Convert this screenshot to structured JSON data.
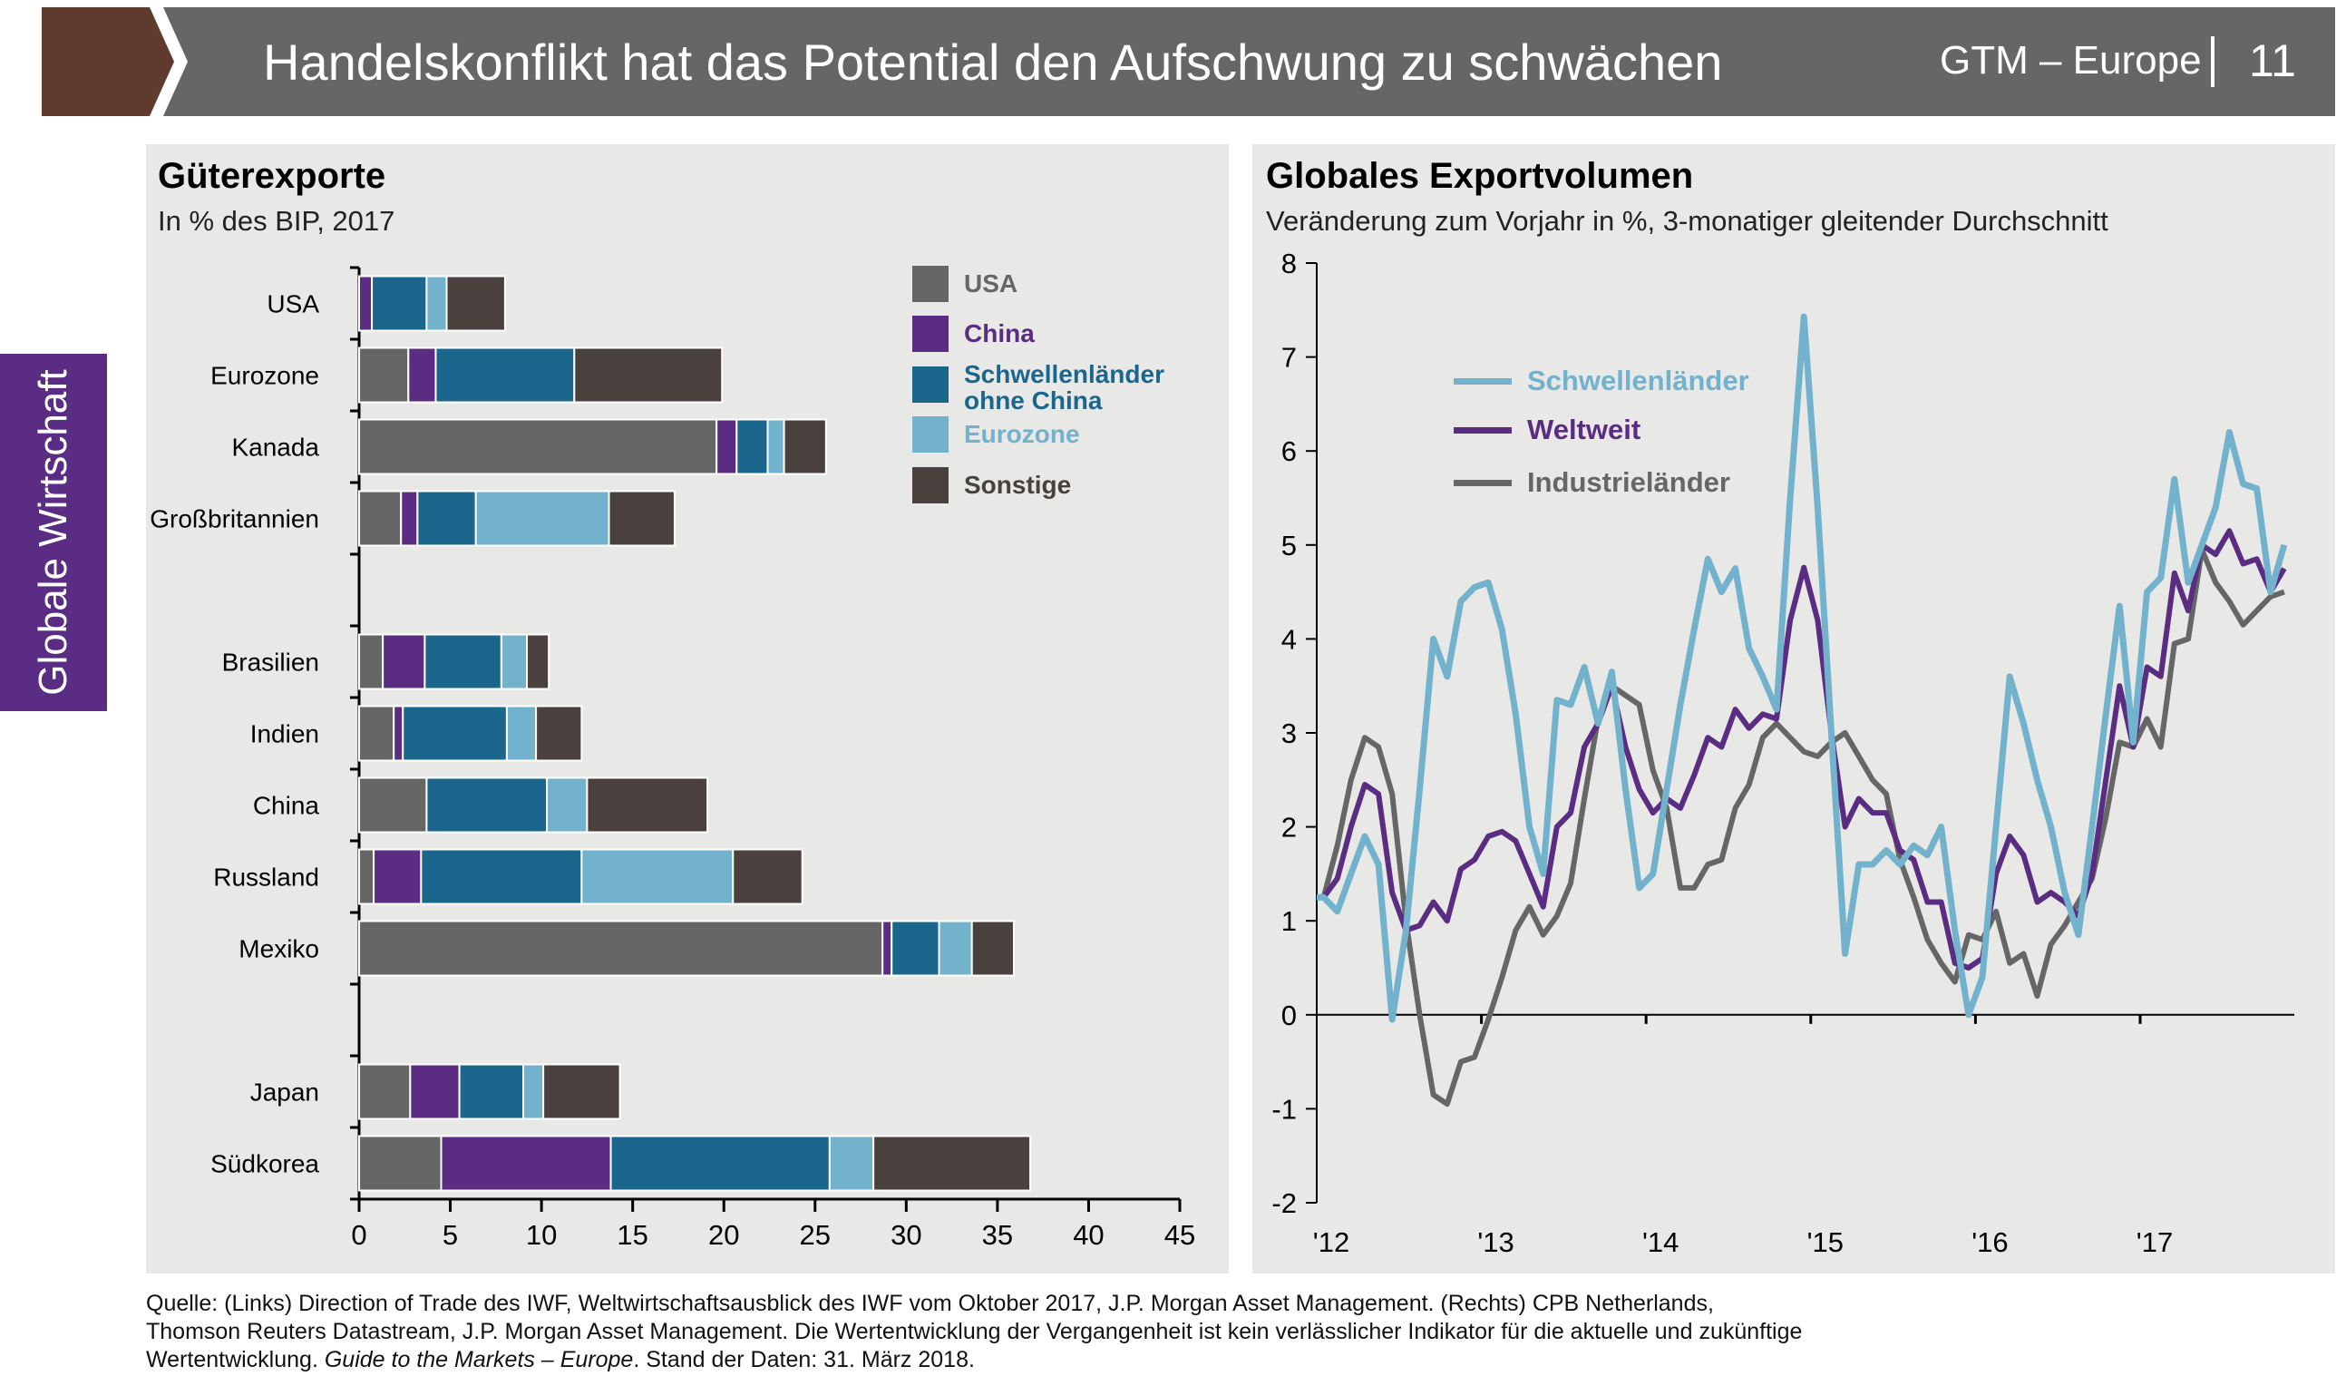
{
  "header": {
    "title": "Handelskonflikt hat das Potential den Aufschwung zu schwächen",
    "brand": "GTM – Europe",
    "page": "11"
  },
  "sidebar": {
    "label": "Globale Wirtschaft"
  },
  "colors": {
    "header_gray": "#666666",
    "header_brown": "#5e3b2c",
    "sidebar_purple": "#5b2c83",
    "panel_bg": "#e8e8e6",
    "usa": "#666666",
    "china": "#5a2d82",
    "schwellen_ohne_china": "#1a668c",
    "eurozone": "#73b2cd",
    "sonstige": "#4a403e"
  },
  "chart_data": [
    {
      "type": "bar",
      "orientation": "horizontal",
      "stacked": true,
      "title": "Güterexporte",
      "subtitle": "In % des BIP, 2017",
      "categories": [
        "USA",
        "Eurozone",
        "Kanada",
        "Großbritannien",
        "Brasilien",
        "Indien",
        "China",
        "Russland",
        "Mexiko",
        "Japan",
        "Südkorea"
      ],
      "series": [
        {
          "name": "USA",
          "color": "#666666",
          "values": [
            0,
            2.7,
            19.6,
            2.3,
            1.3,
            1.9,
            3.7,
            0.8,
            28.7,
            2.8,
            4.5
          ]
        },
        {
          "name": "China",
          "color": "#5a2d82",
          "values": [
            0.7,
            1.5,
            1.1,
            0.9,
            2.3,
            0.5,
            0,
            2.6,
            0.5,
            2.7,
            9.3
          ]
        },
        {
          "name": "Schwellenländer ohne China",
          "color": "#1a668c",
          "values": [
            3.0,
            7.6,
            1.7,
            3.2,
            4.2,
            5.7,
            6.6,
            8.8,
            2.6,
            3.5,
            12.0
          ]
        },
        {
          "name": "Eurozone",
          "color": "#73b2cd",
          "values": [
            1.1,
            0,
            0.9,
            7.3,
            1.4,
            1.6,
            2.2,
            8.3,
            1.8,
            1.1,
            2.4
          ]
        },
        {
          "name": "Sonstige",
          "color": "#4a403e",
          "values": [
            3.2,
            8.1,
            2.3,
            3.6,
            1.2,
            2.5,
            6.6,
            3.8,
            2.3,
            4.2,
            8.6
          ]
        }
      ],
      "xlim": [
        0,
        45
      ],
      "x_ticks": [
        "0",
        "5",
        "10",
        "15",
        "20",
        "25",
        "30",
        "35",
        "40",
        "45"
      ],
      "grid": false,
      "legend": "top-right"
    },
    {
      "type": "line",
      "title": "Globales Exportvolumen",
      "subtitle": "Veränderung zum Vorjahr in %, 3-monatiger gleitender Durchschnitt",
      "x": [
        "2012-01",
        "2012-02",
        "2012-03",
        "2012-04",
        "2012-05",
        "2012-06",
        "2012-07",
        "2012-08",
        "2012-09",
        "2012-10",
        "2012-11",
        "2012-12",
        "2013-01",
        "2013-02",
        "2013-03",
        "2013-04",
        "2013-05",
        "2013-06",
        "2013-07",
        "2013-08",
        "2013-09",
        "2013-10",
        "2013-11",
        "2013-12",
        "2014-01",
        "2014-02",
        "2014-03",
        "2014-04",
        "2014-05",
        "2014-06",
        "2014-07",
        "2014-08",
        "2014-09",
        "2014-10",
        "2014-11",
        "2014-12",
        "2015-01",
        "2015-02",
        "2015-03",
        "2015-04",
        "2015-05",
        "2015-06",
        "2015-07",
        "2015-08",
        "2015-09",
        "2015-10",
        "2015-11",
        "2015-12",
        "2016-01",
        "2016-02",
        "2016-03",
        "2016-04",
        "2016-05",
        "2016-06",
        "2016-07",
        "2016-08",
        "2016-09",
        "2016-10",
        "2016-11",
        "2016-12",
        "2017-01",
        "2017-02",
        "2017-03",
        "2017-04",
        "2017-05",
        "2017-06",
        "2017-07",
        "2017-08",
        "2017-09",
        "2017-10",
        "2017-11"
      ],
      "series": [
        {
          "name": "Industrieländer",
          "color": "#666666",
          "values": [
            1.25,
            1.8,
            2.5,
            2.95,
            2.85,
            2.35,
            1.0,
            0.0,
            -0.85,
            -0.95,
            -0.5,
            -0.45,
            -0.05,
            0.4,
            0.9,
            1.15,
            0.85,
            1.05,
            1.4,
            2.3,
            3.15,
            3.5,
            3.4,
            3.3,
            2.6,
            2.2,
            1.35,
            1.35,
            1.6,
            1.65,
            2.2,
            2.45,
            2.95,
            3.1,
            2.95,
            2.8,
            2.75,
            2.9,
            3.0,
            2.75,
            2.5,
            2.35,
            1.65,
            1.25,
            0.8,
            0.55,
            0.35,
            0.85,
            0.8,
            1.1,
            0.55,
            0.65,
            0.2,
            0.75,
            0.95,
            1.2,
            1.45,
            2.1,
            2.9,
            2.85,
            3.15,
            2.85,
            3.95,
            4.0,
            4.95,
            4.6,
            4.4,
            4.15,
            4.3,
            4.45,
            4.5
          ]
        },
        {
          "name": "Weltweit",
          "color": "#5a2d82",
          "values": [
            1.25,
            1.45,
            2.0,
            2.45,
            2.35,
            1.3,
            0.9,
            0.95,
            1.2,
            1.0,
            1.55,
            1.65,
            1.9,
            1.95,
            1.85,
            1.5,
            1.15,
            2.0,
            2.15,
            2.85,
            3.1,
            3.5,
            2.85,
            2.4,
            2.15,
            2.3,
            2.2,
            2.55,
            2.95,
            2.85,
            3.25,
            3.05,
            3.2,
            3.15,
            4.2,
            4.76,
            4.2,
            3.0,
            2.0,
            2.3,
            2.15,
            2.15,
            1.75,
            1.65,
            1.2,
            1.2,
            0.55,
            0.5,
            0.6,
            1.5,
            1.9,
            1.7,
            1.2,
            1.3,
            1.2,
            1.05,
            1.5,
            2.5,
            3.5,
            2.85,
            3.7,
            3.6,
            4.7,
            4.3,
            5.0,
            4.9,
            5.15,
            4.8,
            4.85,
            4.5,
            4.75
          ]
        },
        {
          "name": "Schwellenländer",
          "color": "#73b2cd",
          "values": [
            1.25,
            1.1,
            1.5,
            1.9,
            1.6,
            -0.05,
            0.9,
            2.4,
            4.0,
            3.6,
            4.4,
            4.55,
            4.6,
            4.1,
            3.2,
            2.0,
            1.5,
            3.35,
            3.3,
            3.7,
            3.1,
            3.65,
            2.4,
            1.35,
            1.5,
            2.4,
            3.3,
            4.1,
            4.85,
            4.5,
            4.75,
            3.9,
            3.6,
            3.25,
            5.5,
            7.43,
            5.4,
            3.0,
            0.65,
            1.6,
            1.6,
            1.75,
            1.6,
            1.8,
            1.7,
            2.0,
            0.9,
            0.0,
            0.4,
            2.0,
            3.6,
            3.1,
            2.5,
            2.0,
            1.3,
            0.85,
            2.0,
            3.2,
            4.35,
            2.9,
            4.5,
            4.65,
            5.7,
            4.6,
            5.0,
            5.4,
            6.2,
            5.65,
            5.6,
            4.5,
            5.0
          ]
        }
      ],
      "legend_order": [
        "Schwellenländer",
        "Weltweit",
        "Industrieländer"
      ],
      "ylim": [
        -2,
        8
      ],
      "y_ticks": [
        "8",
        "7",
        "6",
        "5",
        "4",
        "3",
        "2",
        "1",
        "0",
        "-1",
        "-2"
      ],
      "x_ticks": [
        "'12",
        "'13",
        "'14",
        "'15",
        "'16",
        "'17"
      ],
      "grid": false,
      "legend": "top-left"
    }
  ],
  "footer": {
    "line1": "Quelle: (Links) Direction of Trade des IWF, Weltwirtschaftsausblick des IWF vom Oktober 2017, J.P. Morgan Asset Management. (Rechts) CPB Netherlands,",
    "line2": "Thomson Reuters Datastream, J.P. Morgan Asset Management. Die Wertentwicklung der Vergangenheit ist kein verlässlicher Indikator für die aktuelle und zukünftige",
    "line3_prefix": "Wertentwicklung. ",
    "line3_italic": "Guide to the Markets – Europe",
    "line3_suffix": ". Stand der Daten: 31. März 2018."
  }
}
